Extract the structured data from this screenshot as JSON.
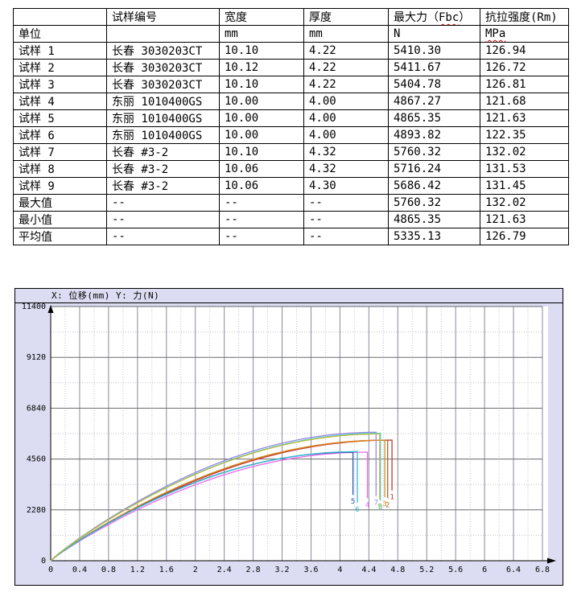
{
  "page": {
    "background": "#ffffff",
    "spellcheck_color": "#dd0000"
  },
  "table": {
    "rows": [
      [
        "",
        "试样编号",
        "宽度",
        "厚度",
        {
          "pre": "最大力（",
          "wavy": "Fbc",
          "post": "）"
        },
        "抗拉强度(Rm)"
      ],
      [
        "单位",
        "",
        "mm",
        "mm",
        "N",
        {
          "pre": "",
          "wavy": "MPa",
          "post": ""
        }
      ],
      [
        "试样 1",
        "长春 3030203CT",
        "10.10",
        "4.22",
        "5410.30",
        "126.94"
      ],
      [
        "试样 2",
        "长春 3030203CT",
        "10.12",
        "4.22",
        "5411.67",
        "126.72"
      ],
      [
        "试样 3",
        "长春 3030203CT",
        "10.10",
        "4.22",
        "5404.78",
        "126.81"
      ],
      [
        "试样 4",
        "东丽 1010400GS",
        "10.00",
        "4.00",
        "4867.27",
        "121.68"
      ],
      [
        "试样 5",
        "东丽 1010400GS",
        "10.00",
        "4.00",
        "4865.35",
        "121.63"
      ],
      [
        "试样 6",
        "东丽 1010400GS",
        "10.00",
        "4.00",
        "4893.82",
        "122.35"
      ],
      [
        "试样 7",
        "长春 #3-2",
        "10.10",
        "4.32",
        "5760.32",
        "132.02"
      ],
      [
        "试样 8",
        "长春 #3-2",
        "10.06",
        "4.32",
        "5716.24",
        "131.53"
      ],
      [
        "试样 9",
        "长春 #3-2",
        "10.06",
        "4.30",
        "5686.42",
        "131.45"
      ],
      [
        "最大值",
        "--",
        "--",
        "--",
        "5760.32",
        "132.02"
      ],
      [
        "最小值",
        "--",
        "--",
        "--",
        "4865.35",
        "121.63"
      ],
      [
        "平均值",
        "--",
        "--",
        "--",
        "5335.13",
        "126.79"
      ]
    ]
  },
  "chart_data": {
    "type": "line",
    "title": "X: 位移(mm)  Y: 力(N)",
    "xlabel": "位移 (mm)",
    "ylabel": "力 (N)",
    "xlim": [
      0,
      6.8
    ],
    "ylim": [
      0,
      11400
    ],
    "x_ticks": [
      "0",
      "0.4",
      "0.8",
      "1.2",
      "1.6",
      "2",
      "2.4",
      "2.8",
      "3.2",
      "3.6",
      "4",
      "4.4",
      "4.8",
      "5.2",
      "5.6",
      "6",
      "6.4",
      "6.8"
    ],
    "y_ticks": [
      "0",
      "2280",
      "4560",
      "6840",
      "9120",
      "11400"
    ],
    "x_minor_step": 0.2,
    "y_minor_step": 1140,
    "grid": true,
    "legend": "none",
    "background": "#dcdcf2",
    "plot_background": "#ffffff",
    "grid_major_color": "#6a6a6a",
    "grid_minor_color": "#c0c0cc",
    "curve_model": "force = fmax_N * sin((PI/2)*(x/break_mm)^0.9) up to break_mm, then vertical fracture drop to drop_to_N, label below",
    "series": [
      {
        "name": "1",
        "color": "#cc3333",
        "fmax_N": 5410.3,
        "break_mm": 4.72,
        "drop_to_N": 3150
      },
      {
        "name": "2",
        "color": "#aa6633",
        "fmax_N": 5411.67,
        "break_mm": 4.66,
        "drop_to_N": 2800
      },
      {
        "name": "3",
        "color": "#dd8822",
        "fmax_N": 5404.78,
        "break_mm": 4.62,
        "drop_to_N": 2850
      },
      {
        "name": "4",
        "color": "#ee66ee",
        "fmax_N": 4867.27,
        "break_mm": 4.38,
        "drop_to_N": 2800
      },
      {
        "name": "5",
        "color": "#3355bb",
        "fmax_N": 4865.35,
        "break_mm": 4.18,
        "drop_to_N": 2950
      },
      {
        "name": "6",
        "color": "#33bbcc",
        "fmax_N": 4893.82,
        "break_mm": 4.24,
        "drop_to_N": 2600
      },
      {
        "name": "7",
        "color": "#9988dd",
        "fmax_N": 5760.32,
        "break_mm": 4.5,
        "drop_to_N": 2900
      },
      {
        "name": "8",
        "color": "#44ccee",
        "fmax_N": 5716.24,
        "break_mm": 4.56,
        "drop_to_N": 2700
      },
      {
        "name": "9",
        "color": "#bbbb33",
        "fmax_N": 5686.42,
        "break_mm": 4.55,
        "drop_to_N": 2750
      }
    ]
  }
}
